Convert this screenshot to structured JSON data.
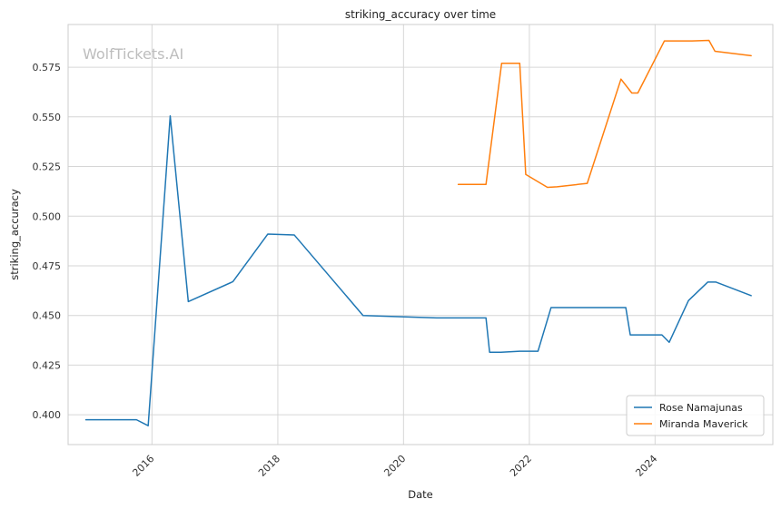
{
  "chart_data": {
    "type": "line",
    "title": "striking_accuracy over time",
    "xlabel": "Date",
    "ylabel": "striking_accuracy",
    "watermark": "WolfTickets.AI",
    "xlim": [
      "2014-09-01",
      "2025-11-15"
    ],
    "ylim": [
      0.385,
      0.5965
    ],
    "x_ticks": [
      "2016",
      "2018",
      "2020",
      "2022",
      "2024"
    ],
    "y_ticks": [
      "0.400",
      "0.425",
      "0.450",
      "0.475",
      "0.500",
      "0.525",
      "0.550",
      "0.575"
    ],
    "grid": true,
    "legend_position": "bottom-right",
    "series": [
      {
        "name": "Rose Namajunas",
        "color": "#1f77b4",
        "points": [
          [
            "2014-12-13",
            0.3975
          ],
          [
            "2015-10-03",
            0.3975
          ],
          [
            "2015-12-10",
            0.3945
          ],
          [
            "2016-04-16",
            0.5505
          ],
          [
            "2016-07-30",
            0.457
          ],
          [
            "2017-04-15",
            0.467
          ],
          [
            "2017-11-04",
            0.491
          ],
          [
            "2018-04-07",
            0.4905
          ],
          [
            "2019-05-11",
            0.45
          ],
          [
            "2020-07-11",
            0.4488
          ],
          [
            "2021-04-24",
            0.4488
          ],
          [
            "2021-05-15",
            0.4315
          ],
          [
            "2021-07-20",
            0.4315
          ],
          [
            "2021-11-06",
            0.432
          ],
          [
            "2022-02-20",
            0.432
          ],
          [
            "2022-05-07",
            0.454
          ],
          [
            "2023-07-15",
            0.454
          ],
          [
            "2023-08-10",
            0.4402
          ],
          [
            "2024-02-10",
            0.4402
          ],
          [
            "2024-03-23",
            0.4365
          ],
          [
            "2024-07-13",
            0.4575
          ],
          [
            "2024-11-02",
            0.4668
          ],
          [
            "2024-12-20",
            0.4668
          ],
          [
            "2025-07-12",
            0.46
          ]
        ]
      },
      {
        "name": "Miranda Maverick",
        "color": "#ff7f0e",
        "points": [
          [
            "2020-11-14",
            0.516
          ],
          [
            "2021-04-24",
            0.516
          ],
          [
            "2021-07-24",
            0.577
          ],
          [
            "2021-11-06",
            0.577
          ],
          [
            "2021-12-11",
            0.521
          ],
          [
            "2022-04-16",
            0.5145
          ],
          [
            "2022-06-11",
            0.5148
          ],
          [
            "2022-12-03",
            0.5165
          ],
          [
            "2023-06-17",
            0.569
          ],
          [
            "2023-08-19",
            0.562
          ],
          [
            "2023-09-23",
            0.562
          ],
          [
            "2024-02-24",
            0.5882
          ],
          [
            "2024-08-03",
            0.5882
          ],
          [
            "2024-11-09",
            0.5885
          ],
          [
            "2024-12-14",
            0.583
          ],
          [
            "2025-07-12",
            0.5808
          ]
        ]
      }
    ]
  }
}
